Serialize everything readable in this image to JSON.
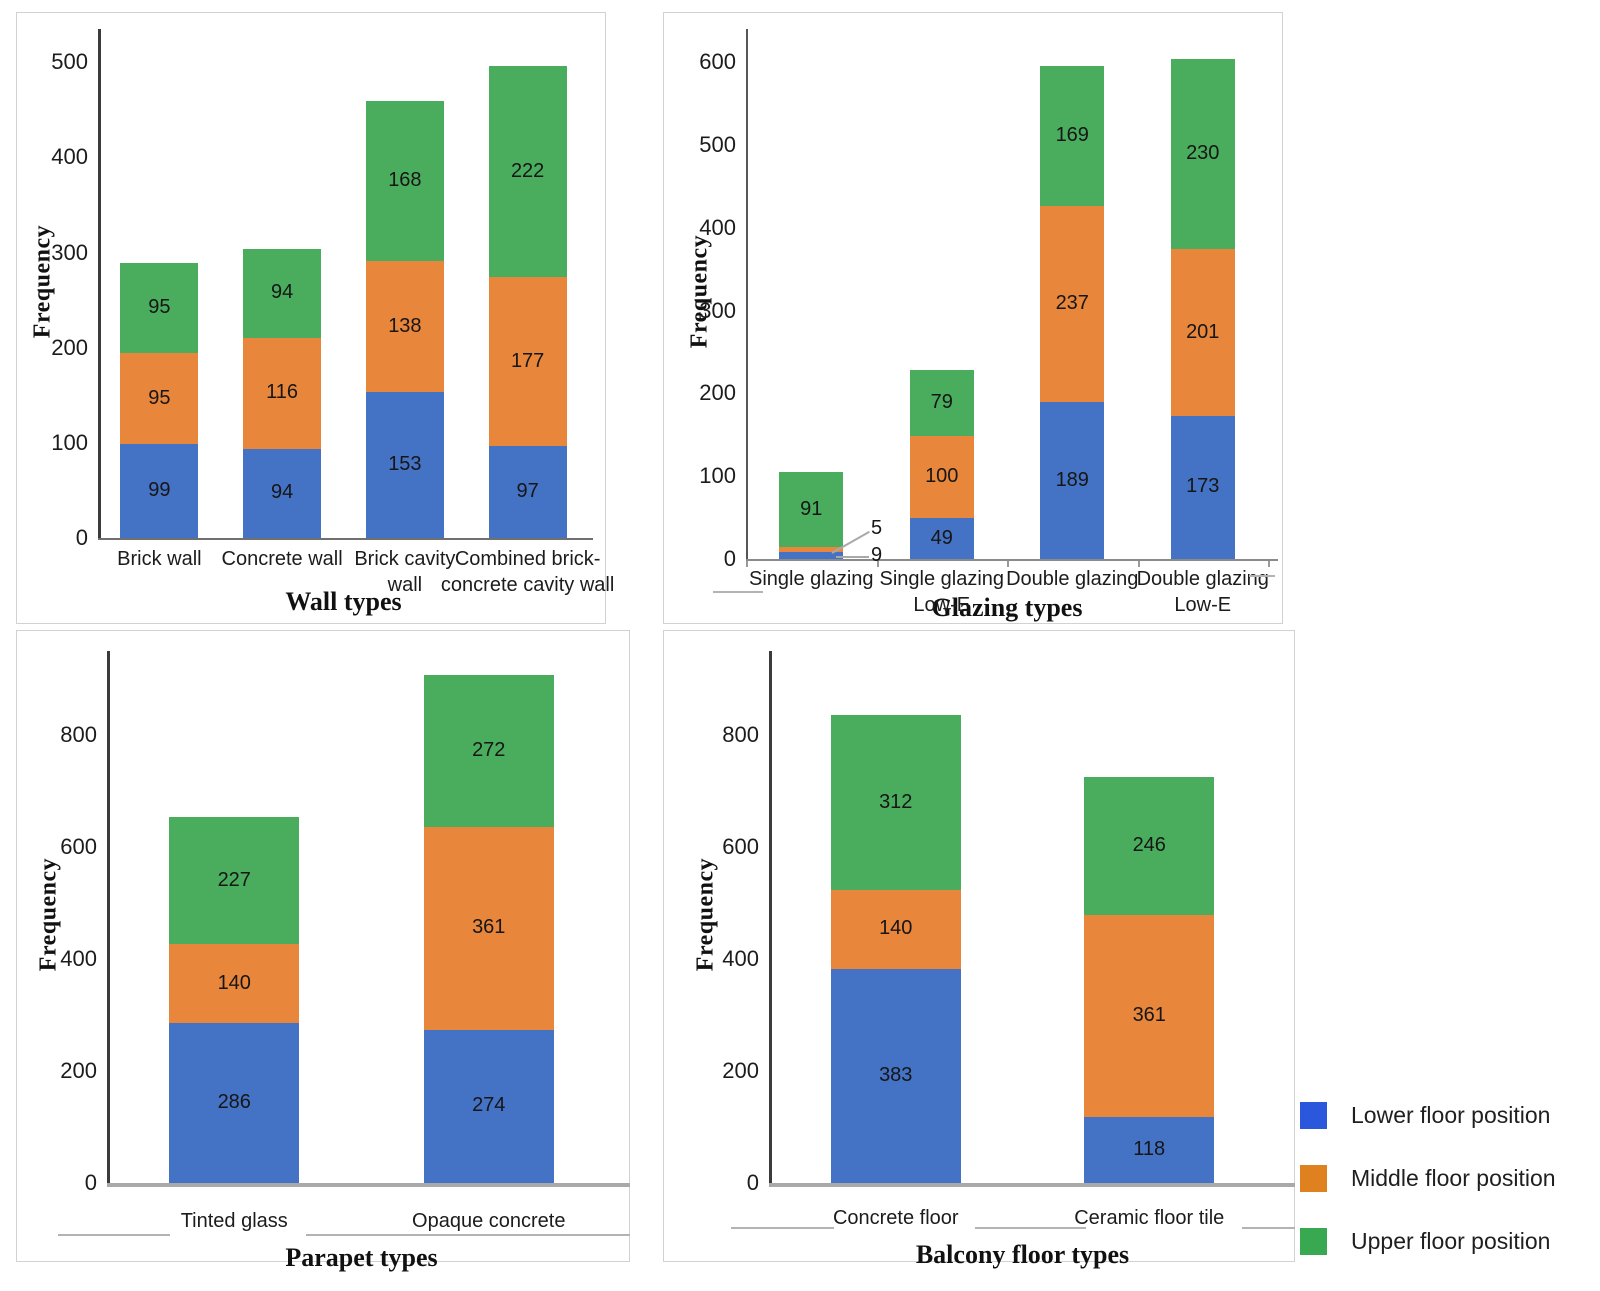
{
  "legend": {
    "position": "bottom-right",
    "items": [
      {
        "label": "Lower floor position",
        "color": "#2b57dd"
      },
      {
        "label": "Middle floor position",
        "color": "#e08120"
      },
      {
        "label": "Upper floor position",
        "color": "#39a951"
      }
    ]
  },
  "bar_colors": {
    "lower": "#4472c4",
    "middle": "#e8863c",
    "upper": "#4aad5e"
  },
  "chart_data": [
    {
      "type": "bar",
      "stacked": true,
      "title": "",
      "xlabel": "Wall types",
      "ylabel": "Frequency",
      "categories": [
        "Brick wall",
        "Concrete wall",
        "Brick cavity\nwall",
        "Combined brick-\nconcrete cavity wall"
      ],
      "series": [
        {
          "name": "Lower floor position",
          "color": "#4472c4",
          "values": [
            99,
            94,
            153,
            97
          ]
        },
        {
          "name": "Middle floor position",
          "color": "#e8863c",
          "values": [
            95,
            116,
            138,
            177
          ]
        },
        {
          "name": "Upper floor position",
          "color": "#4aad5e",
          "values": [
            95,
            94,
            168,
            222
          ]
        }
      ],
      "ylim": [
        0,
        535
      ],
      "yticks": [
        0,
        100,
        200,
        300,
        400,
        500
      ],
      "grid": false,
      "legend_position": "none"
    },
    {
      "type": "bar",
      "stacked": true,
      "title": "",
      "xlabel": "Glazing types",
      "ylabel": "Frequency",
      "categories": [
        "Single glazing",
        "Single glazing\nLow-E",
        "Double glazing",
        "Double glazing\nLow-E"
      ],
      "series": [
        {
          "name": "Lower floor position",
          "color": "#4472c4",
          "values": [
            9,
            49,
            189,
            173
          ]
        },
        {
          "name": "Middle floor position",
          "color": "#e8863c",
          "values": [
            5,
            100,
            237,
            201
          ]
        },
        {
          "name": "Upper floor position",
          "color": "#4aad5e",
          "values": [
            91,
            79,
            169,
            230
          ]
        }
      ],
      "callouts": [
        {
          "series": "Middle floor position",
          "category": "Single glazing",
          "value": 5
        },
        {
          "series": "Lower floor position",
          "category": "Single glazing",
          "value": 9
        }
      ],
      "ylim": [
        0,
        640
      ],
      "yticks": [
        0,
        100,
        200,
        300,
        400,
        500,
        600
      ],
      "grid": false,
      "legend_position": "none"
    },
    {
      "type": "bar",
      "stacked": true,
      "title": "",
      "xlabel": "Parapet types",
      "ylabel": "Frequency",
      "categories": [
        "Tinted glass",
        "Opaque concrete"
      ],
      "series": [
        {
          "name": "Lower floor position",
          "color": "#4472c4",
          "values": [
            286,
            274
          ]
        },
        {
          "name": "Middle floor position",
          "color": "#e8863c",
          "values": [
            140,
            361
          ]
        },
        {
          "name": "Upper floor position",
          "color": "#4aad5e",
          "values": [
            227,
            272
          ]
        }
      ],
      "ylim": [
        0,
        950
      ],
      "yticks": [
        0,
        200,
        400,
        600,
        800
      ],
      "grid": false,
      "legend_position": "none"
    },
    {
      "type": "bar",
      "stacked": true,
      "title": "",
      "xlabel": "Balcony floor types",
      "ylabel": "Frequency",
      "categories": [
        "Concrete floor",
        "Ceramic floor tile"
      ],
      "series": [
        {
          "name": "Lower floor position",
          "color": "#4472c4",
          "values": [
            383,
            118
          ]
        },
        {
          "name": "Middle floor position",
          "color": "#e8863c",
          "values": [
            140,
            361
          ]
        },
        {
          "name": "Upper floor position",
          "color": "#4aad5e",
          "values": [
            312,
            246
          ]
        }
      ],
      "ylim": [
        0,
        950
      ],
      "yticks": [
        0,
        200,
        400,
        600,
        800
      ],
      "grid": false,
      "legend_position": "none"
    }
  ]
}
